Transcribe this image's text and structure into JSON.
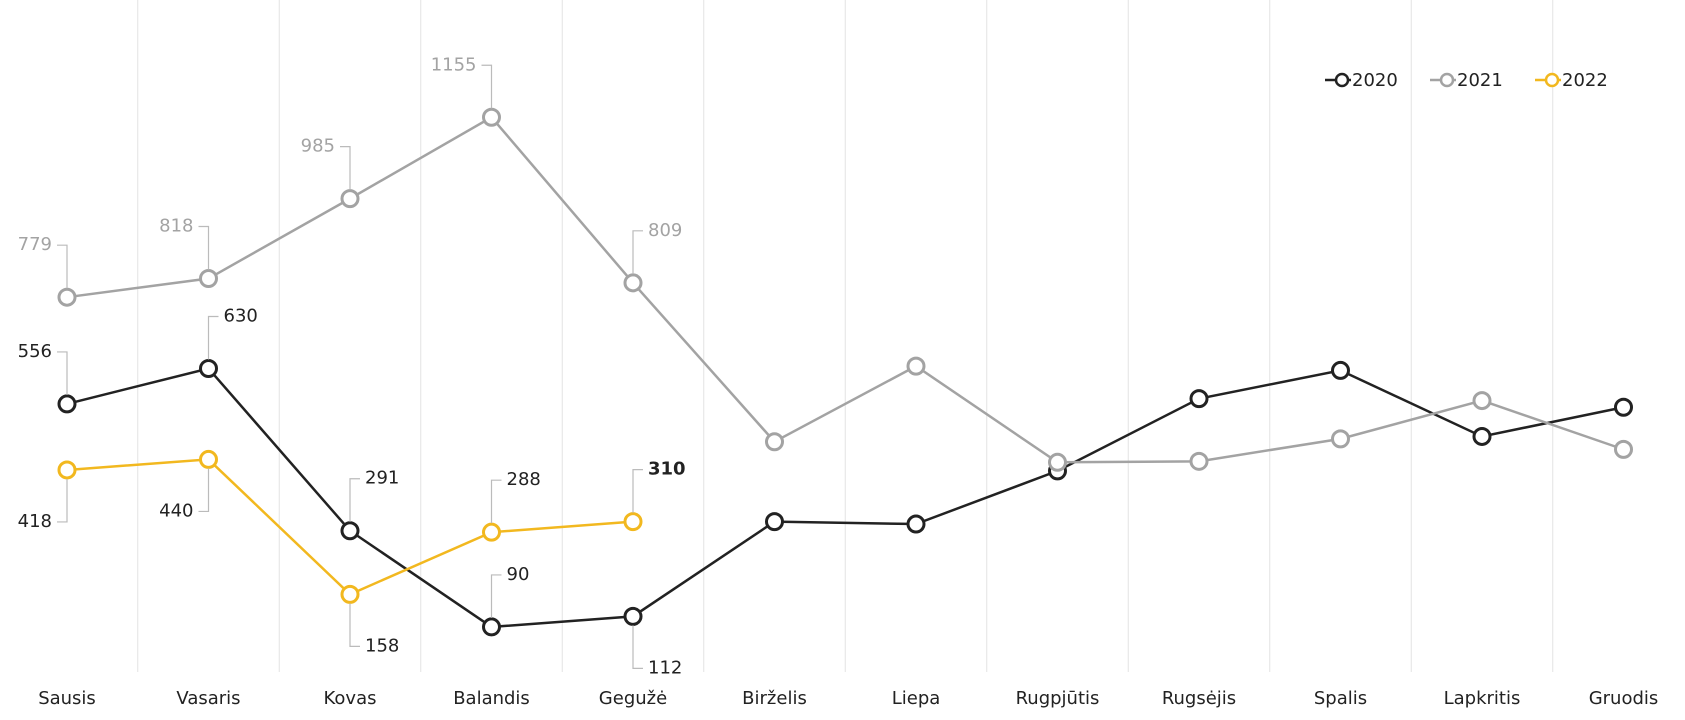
{
  "chart_data": {
    "type": "line",
    "categories": [
      "Sausis",
      "Vasaris",
      "Kovas",
      "Balandis",
      "Gegužė",
      "Birželis",
      "Liepa",
      "Rugpjūtis",
      "Rugsėjis",
      "Spalis",
      "Lapkritis",
      "Gruodis"
    ],
    "series": [
      {
        "name": "2020",
        "color": "#222222",
        "values": [
          556,
          630,
          291,
          90,
          112,
          310,
          305,
          416,
          567,
          626,
          488,
          549
        ],
        "value_labels": [
          "556",
          "630",
          "291",
          "90",
          "112",
          null,
          null,
          null,
          null,
          null,
          null,
          null
        ]
      },
      {
        "name": "2021",
        "color": "#a3a3a3",
        "values": [
          779,
          818,
          985,
          1155,
          809,
          477,
          635,
          434,
          436,
          483,
          563,
          461
        ],
        "value_labels": [
          "779",
          "818",
          "985",
          "1155",
          "809",
          null,
          null,
          null,
          null,
          null,
          null,
          null
        ]
      },
      {
        "name": "2022",
        "color": "#f2b81f",
        "values": [
          418,
          440,
          158,
          288,
          310,
          null,
          null,
          null,
          null,
          null,
          null,
          null
        ],
        "value_labels": [
          "418",
          "440",
          "158",
          "288",
          "310",
          null,
          null,
          null,
          null,
          null,
          null,
          null
        ]
      }
    ],
    "ylim": [
      0,
      1400
    ],
    "grid": true,
    "legend": "top-right"
  }
}
